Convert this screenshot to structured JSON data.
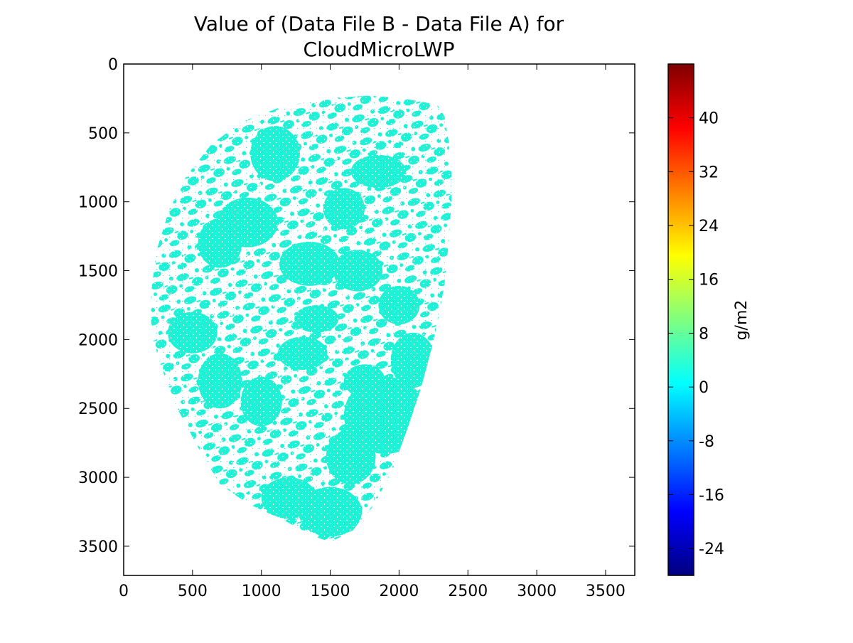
{
  "chart_data": {
    "type": "heatmap",
    "title": "Value of (Data File B - Data File A) for\nCloudMicroLWP",
    "title_lines": [
      "Value of (Data File B - Data File A) for",
      "CloudMicroLWP"
    ],
    "xlim": [
      0,
      3712
    ],
    "ylim": [
      3712,
      0
    ],
    "y_inverted": true,
    "x_ticks": [
      0,
      500,
      1000,
      1500,
      2000,
      2500,
      3000,
      3500
    ],
    "y_ticks": [
      0,
      500,
      1000,
      1500,
      2000,
      2500,
      3000,
      3500
    ],
    "x_tick_labels": [
      "0",
      "500",
      "1000",
      "1500",
      "2000",
      "2500",
      "3000",
      "3500"
    ],
    "y_tick_labels": [
      "0",
      "500",
      "1000",
      "1500",
      "2000",
      "2500",
      "3000",
      "3500"
    ],
    "data_extent_note": "Earth disk region; plotted values near 0 (cyan) on white background",
    "field_value": 0,
    "field_color": "#1df2d6",
    "colorbar": {
      "label": "g/m2",
      "range": [
        -28,
        48
      ],
      "ticks": [
        40,
        32,
        24,
        16,
        8,
        0,
        -8,
        -16,
        -24
      ],
      "tick_labels": [
        "40",
        "32",
        "24",
        "16",
        "8",
        "0",
        "-8",
        "-16",
        "-24"
      ],
      "colormap": "jet"
    }
  }
}
